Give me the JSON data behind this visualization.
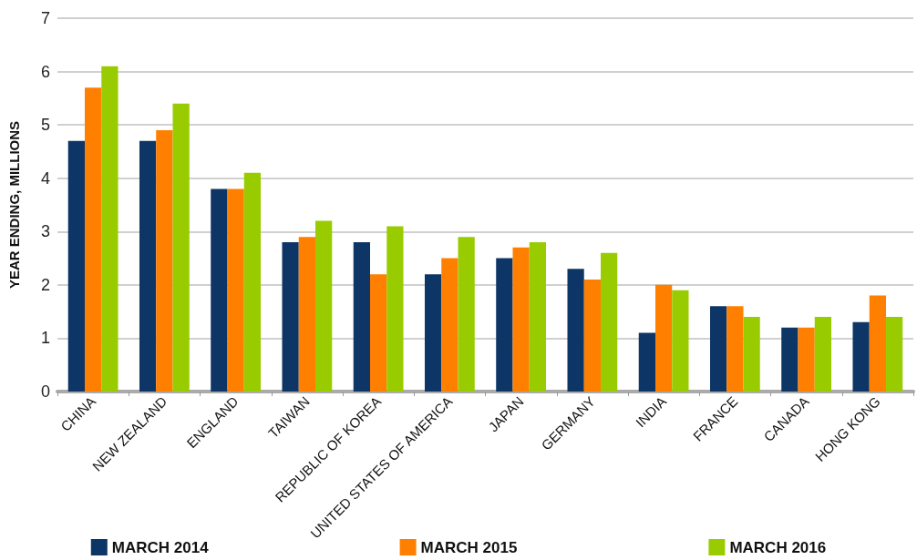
{
  "chart_data": {
    "type": "bar",
    "ylabel": "YEAR ENDING, MILLIONS",
    "categories": [
      "CHINA",
      "NEW ZEALAND",
      "ENGLAND",
      "TAIWAN",
      "REPUBLIC OF KOREA",
      "UNITED STATES OF AMERICA",
      "JAPAN",
      "GERMANY",
      "INDIA",
      "FRANCE",
      "CANADA",
      "HONG KONG"
    ],
    "series": [
      {
        "name": "MARCH 2014",
        "color": "#0d3566",
        "values": [
          4.7,
          4.7,
          3.8,
          2.8,
          2.8,
          2.2,
          2.5,
          2.3,
          1.1,
          1.6,
          1.2,
          1.3
        ]
      },
      {
        "name": "MARCH 2015",
        "color": "#ff7f00",
        "values": [
          5.7,
          4.9,
          3.8,
          2.9,
          2.2,
          2.5,
          2.7,
          2.1,
          2.0,
          1.6,
          1.2,
          1.8
        ]
      },
      {
        "name": "MARCH 2016",
        "color": "#99cc00",
        "values": [
          6.1,
          5.4,
          4.1,
          3.2,
          3.1,
          2.9,
          2.8,
          2.6,
          1.9,
          1.4,
          1.4,
          1.4
        ]
      }
    ],
    "ylim": [
      0,
      7
    ],
    "yticks": [
      0,
      1,
      2,
      3,
      4,
      5,
      6,
      7
    ],
    "grid": "y",
    "legend": "bottom"
  }
}
